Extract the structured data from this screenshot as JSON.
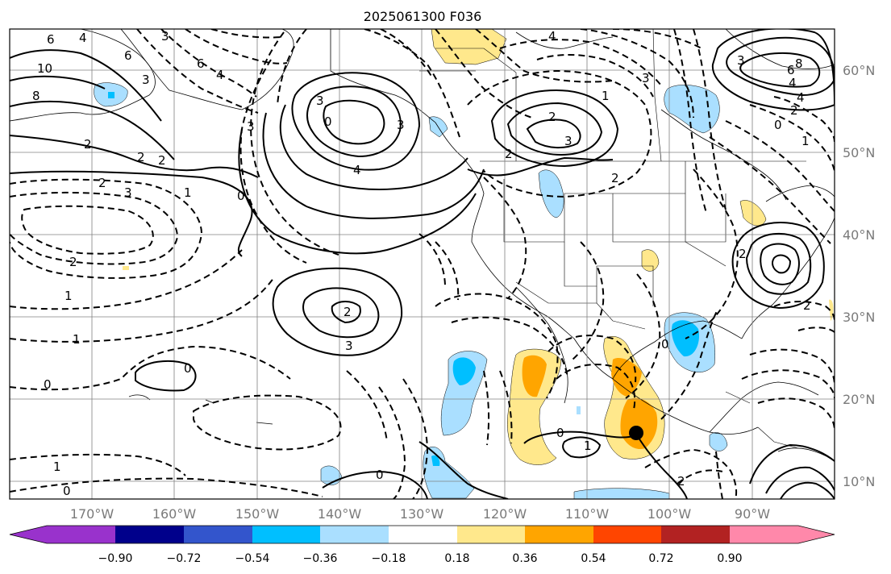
{
  "title": "2025061300 F036",
  "map": {
    "lon_labels": [
      "170°W",
      "160°W",
      "150°W",
      "140°W",
      "130°W",
      "120°W",
      "110°W",
      "100°W",
      "90°W"
    ],
    "lat_labels": [
      "60°N",
      "50°N",
      "40°N",
      "30°N",
      "20°N",
      "10°N"
    ],
    "grid": true,
    "marker": "filled black dot near 16°N 104°W",
    "contour_labels": [
      "6",
      "4",
      "3",
      "10",
      "8",
      "6",
      "3",
      "2",
      "2",
      "3",
      "0",
      "6",
      "4",
      "3",
      "2",
      "3",
      "0",
      "1",
      "2",
      "3",
      "4",
      "2",
      "1",
      "0",
      "2",
      "3",
      "0",
      "1",
      "0",
      "1",
      "2",
      "2",
      "3",
      "3",
      "1",
      "2",
      "4",
      "4",
      "8",
      "6",
      "4",
      "2",
      "0",
      "3",
      "1",
      "2",
      "0",
      "0",
      "1",
      "0",
      "2",
      "2"
    ]
  },
  "colorbar": {
    "colors": [
      "#9932cc",
      "#00008b",
      "#3355cc",
      "#00bfff",
      "#aadfff",
      "#ffffff",
      "#ffe88c",
      "#ffa500",
      "#ff4500",
      "#b22222",
      "#ff88aa"
    ],
    "tick_labels": [
      "−0.90",
      "−0.72",
      "−0.54",
      "−0.36",
      "−0.18",
      "0.18",
      "0.36",
      "0.54",
      "0.72",
      "0.90"
    ]
  },
  "legend_colors": {
    "light_blue": "#aadfff",
    "blue": "#00bfff",
    "yellow": "#ffe88c",
    "orange": "#ffa500"
  }
}
